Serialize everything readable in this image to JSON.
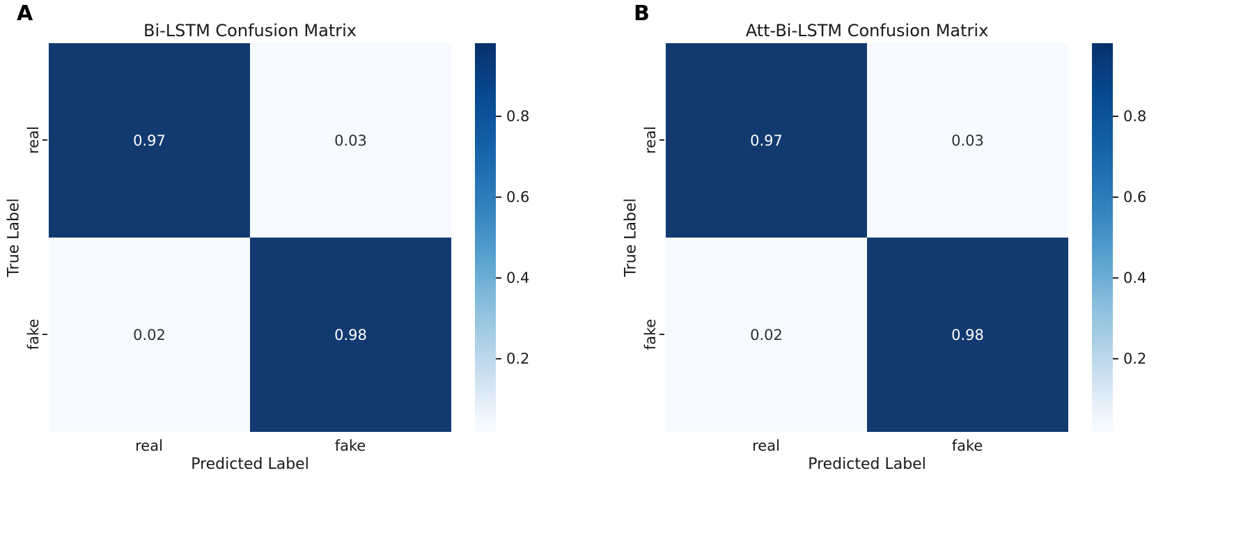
{
  "figure": {
    "background": "#ffffff"
  },
  "chart_data": [
    {
      "type": "heatmap",
      "panel_label": "A",
      "title": "Bi-LSTM Confusion Matrix",
      "xlabel": "Predicted Label",
      "ylabel": "True Label",
      "x_categories": [
        "real",
        "fake"
      ],
      "y_categories": [
        "real",
        "fake"
      ],
      "values": [
        [
          0.97,
          0.03
        ],
        [
          0.02,
          0.98
        ]
      ],
      "colormap": "Blues",
      "colorbar_ticks": [
        0.8,
        0.6,
        0.4,
        0.2
      ],
      "colorbar_range": [
        0.02,
        0.98
      ],
      "colors": {
        "high_cell": "#123a70",
        "low_cell": "#f6fafe",
        "annotation_on_high": "#ffffff",
        "annotation_on_low": "#2e2e2e"
      }
    },
    {
      "type": "heatmap",
      "panel_label": "B",
      "title": "Att-Bi-LSTM Confusion Matrix",
      "xlabel": "Predicted Label",
      "ylabel": "True Label",
      "x_categories": [
        "real",
        "fake"
      ],
      "y_categories": [
        "real",
        "fake"
      ],
      "values": [
        [
          0.97,
          0.03
        ],
        [
          0.02,
          0.98
        ]
      ],
      "colormap": "Blues",
      "colorbar_ticks": [
        0.8,
        0.6,
        0.4,
        0.2
      ],
      "colorbar_range": [
        0.02,
        0.98
      ],
      "colors": {
        "high_cell": "#123a70",
        "low_cell": "#f6fafe",
        "annotation_on_high": "#ffffff",
        "annotation_on_low": "#2e2e2e"
      }
    }
  ]
}
